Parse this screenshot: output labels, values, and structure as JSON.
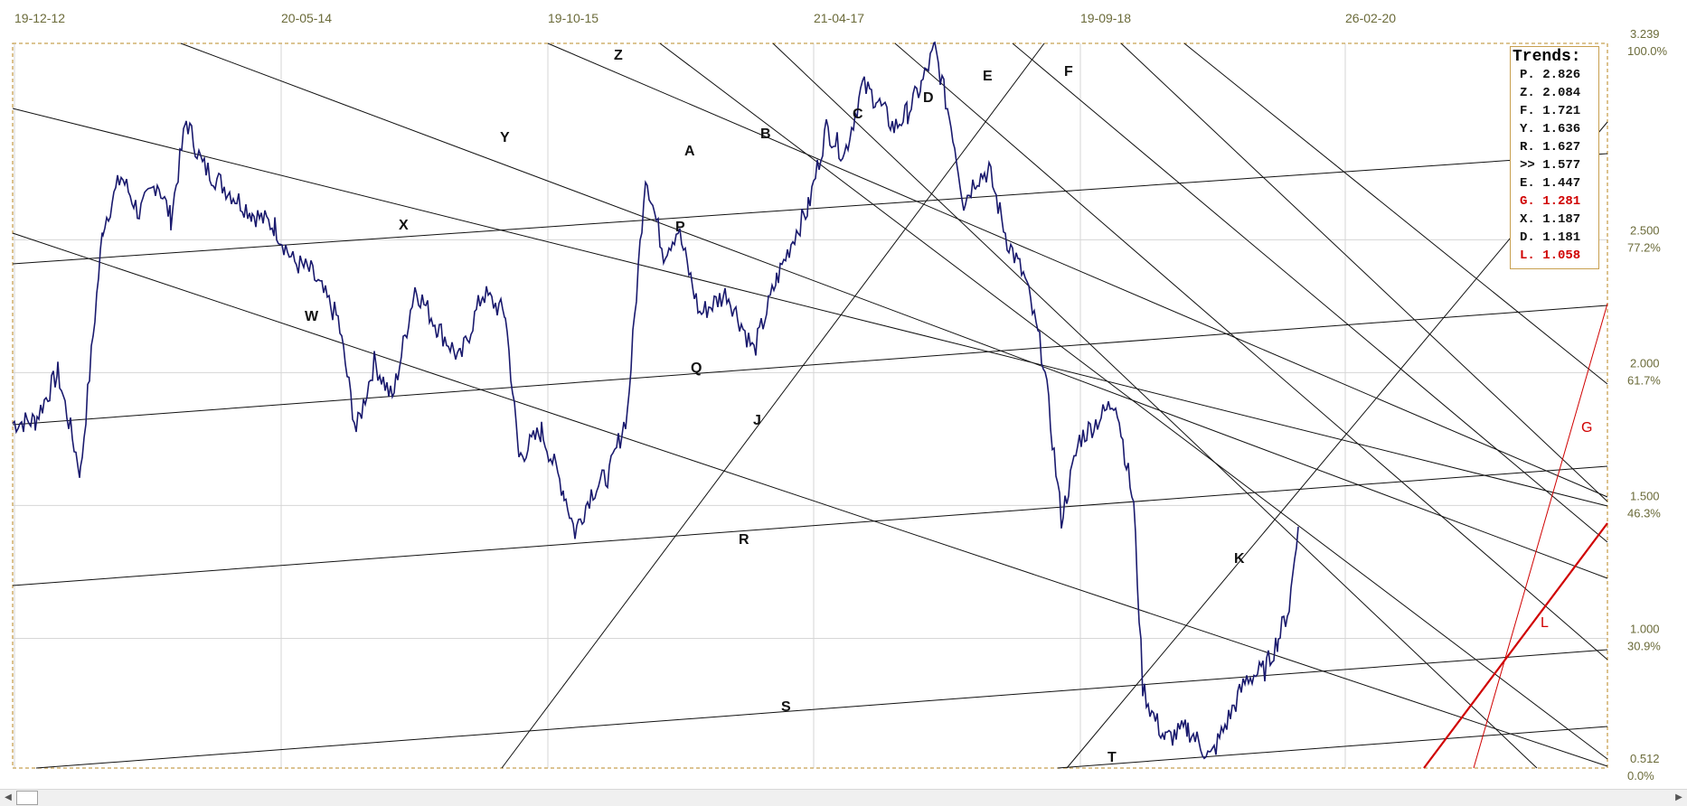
{
  "chart_data": {
    "type": "line",
    "title": "",
    "xlabel": "",
    "ylabel": "",
    "x_tick_labels": [
      "19-12-12",
      "20-05-14",
      "19-10-15",
      "21-04-17",
      "19-09-18",
      "26-02-20"
    ],
    "y_ticks": [
      {
        "value": "3.239",
        "pct": "100.0%"
      },
      {
        "value": "2.500",
        "pct": "77.2%"
      },
      {
        "value": "2.000",
        "pct": "61.7%"
      },
      {
        "value": "1.500",
        "pct": "46.3%"
      },
      {
        "value": "1.000",
        "pct": "30.9%"
      },
      {
        "value": "0.512",
        "pct": "0.0%"
      }
    ],
    "ylim": [
      0.512,
      3.239
    ],
    "grid": true,
    "series": [
      {
        "color": "#1a1a6e",
        "points": [
          [
            0,
            1.81
          ],
          [
            25,
            1.82
          ],
          [
            50,
            2.0
          ],
          [
            75,
            1.62
          ],
          [
            100,
            2.55
          ],
          [
            120,
            2.74
          ],
          [
            140,
            2.6
          ],
          [
            160,
            2.72
          ],
          [
            175,
            2.58
          ],
          [
            192,
            2.95
          ],
          [
            210,
            2.78
          ],
          [
            240,
            2.68
          ],
          [
            265,
            2.6
          ],
          [
            290,
            2.55
          ],
          [
            310,
            2.42
          ],
          [
            330,
            2.38
          ],
          [
            360,
            2.2
          ],
          [
            380,
            1.78
          ],
          [
            400,
            2.04
          ],
          [
            420,
            1.9
          ],
          [
            445,
            2.32
          ],
          [
            470,
            2.17
          ],
          [
            495,
            2.05
          ],
          [
            520,
            2.3
          ],
          [
            545,
            2.22
          ],
          [
            560,
            1.68
          ],
          [
            585,
            1.78
          ],
          [
            610,
            1.55
          ],
          [
            622,
            1.4
          ],
          [
            640,
            1.55
          ],
          [
            660,
            1.62
          ],
          [
            680,
            1.85
          ],
          [
            700,
            2.75
          ],
          [
            720,
            2.45
          ],
          [
            736,
            2.54
          ],
          [
            760,
            2.22
          ],
          [
            790,
            2.3
          ],
          [
            820,
            2.08
          ],
          [
            845,
            2.35
          ],
          [
            865,
            2.52
          ],
          [
            880,
            2.62
          ],
          [
            900,
            2.92
          ],
          [
            920,
            2.82
          ],
          [
            940,
            3.08
          ],
          [
            955,
            3.03
          ],
          [
            975,
            2.92
          ],
          [
            990,
            2.98
          ],
          [
            1005,
            3.08
          ],
          [
            1020,
            3.22
          ],
          [
            1040,
            2.9
          ],
          [
            1052,
            2.64
          ],
          [
            1065,
            2.73
          ],
          [
            1080,
            2.76
          ],
          [
            1100,
            2.5
          ],
          [
            1120,
            2.35
          ],
          [
            1140,
            2.05
          ],
          [
            1160,
            1.45
          ],
          [
            1180,
            1.75
          ],
          [
            1200,
            1.82
          ],
          [
            1220,
            1.9
          ],
          [
            1240,
            1.5
          ],
          [
            1250,
            0.82
          ],
          [
            1260,
            0.72
          ],
          [
            1275,
            0.62
          ],
          [
            1300,
            0.66
          ],
          [
            1325,
            0.55
          ],
          [
            1345,
            0.7
          ],
          [
            1365,
            0.85
          ],
          [
            1385,
            0.88
          ],
          [
            1400,
            1.0
          ],
          [
            1412,
            1.12
          ],
          [
            1422,
            1.42
          ]
        ]
      }
    ],
    "trend_lines": [
      {
        "name": "Z",
        "color": "#111111"
      },
      {
        "name": "A",
        "color": "#111111"
      },
      {
        "name": "B",
        "color": "#111111"
      },
      {
        "name": "C",
        "color": "#111111"
      },
      {
        "name": "D",
        "color": "#111111"
      },
      {
        "name": "E",
        "color": "#111111"
      },
      {
        "name": "F",
        "color": "#111111"
      },
      {
        "name": "Y",
        "color": "#111111"
      },
      {
        "name": "X",
        "color": "#111111"
      },
      {
        "name": "P",
        "color": "#111111"
      },
      {
        "name": "W",
        "color": "#111111"
      },
      {
        "name": "Q",
        "color": "#111111"
      },
      {
        "name": "J",
        "color": "#111111"
      },
      {
        "name": "R",
        "color": "#111111"
      },
      {
        "name": "K",
        "color": "#111111"
      },
      {
        "name": "S",
        "color": "#111111"
      },
      {
        "name": "T",
        "color": "#111111"
      },
      {
        "name": "G",
        "color": "#d00000"
      },
      {
        "name": "L",
        "color": "#d00000"
      }
    ]
  },
  "legend": {
    "title": "Trends:",
    "entries": [
      {
        "label": "P. 2.826",
        "color": "#111111"
      },
      {
        "label": "Z. 2.084",
        "color": "#111111"
      },
      {
        "label": "F. 1.721",
        "color": "#111111"
      },
      {
        "label": "Y. 1.636",
        "color": "#111111"
      },
      {
        "label": "R. 1.627",
        "color": "#111111"
      },
      {
        "label": ">> 1.577",
        "color": "#111111"
      },
      {
        "label": "E. 1.447",
        "color": "#111111"
      },
      {
        "label": "G. 1.281",
        "color": "#d00000"
      },
      {
        "label": "X. 1.187",
        "color": "#111111"
      },
      {
        "label": "D. 1.181",
        "color": "#111111"
      },
      {
        "label": "L. 1.058",
        "color": "#d00000"
      }
    ]
  },
  "scrollbar": {
    "left_arrow": "◀",
    "right_arrow": "▶"
  },
  "colors": {
    "frame": "#c8a050",
    "grid": "#d6d6d6",
    "price": "#1a1a6e",
    "trend": "#111111",
    "highlight": "#d00000"
  }
}
